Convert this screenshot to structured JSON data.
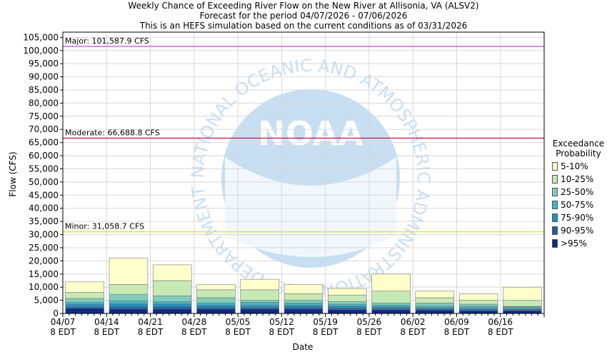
{
  "title": {
    "line1": "Weekly Chance of Exceeding River Flow on the New River at Allisonia, VA (ALSV2)",
    "line2": "Forecast for the period 04/07/2026 - 07/06/2026",
    "line3": "This is an HEFS simulation based on the current conditions as of 03/31/2026"
  },
  "legend": {
    "title_line1": "Exceedance",
    "title_line2": "Probability",
    "items": [
      {
        "label": "5-10%",
        "color": "#ffffcc"
      },
      {
        "label": "10-25%",
        "color": "#c7e9b4"
      },
      {
        "label": "25-50%",
        "color": "#7fcdbb"
      },
      {
        "label": "50-75%",
        "color": "#41b6c4"
      },
      {
        "label": "75-90%",
        "color": "#1d91c0"
      },
      {
        "label": "90-95%",
        "color": "#225ea8"
      },
      {
        "label": ">95%",
        "color": "#0c2c84"
      }
    ]
  },
  "watermark": {
    "logo_text": "NOAA",
    "ring_text": "NATIONAL OCEANIC AND ATMOSPHERIC ADMINISTRATION · U.S. DEPARTMENT OF COMMERCE"
  },
  "chart_data": {
    "type": "bar",
    "stacked": true,
    "xlabel": "Date",
    "ylabel": "Flow (CFS)",
    "ylim": [
      0,
      107000
    ],
    "yticks": [
      0,
      5000,
      10000,
      15000,
      20000,
      25000,
      30000,
      35000,
      40000,
      45000,
      50000,
      55000,
      60000,
      65000,
      70000,
      75000,
      80000,
      85000,
      90000,
      95000,
      100000,
      105000
    ],
    "ytick_labels": [
      "0",
      "5,000",
      "10,000",
      "15,000",
      "20,000",
      "25,000",
      "30,000",
      "35,000",
      "40,000",
      "45,000",
      "50,000",
      "55,000",
      "60,000",
      "65,000",
      "70,000",
      "75,000",
      "80,000",
      "85,000",
      "90,000",
      "95,000",
      "100,000",
      "105,000"
    ],
    "xtick_labels": [
      [
        "04/07",
        "8 EDT"
      ],
      [
        "04/14",
        "8 EDT"
      ],
      [
        "04/21",
        "8 EDT"
      ],
      [
        "04/28",
        "8 EDT"
      ],
      [
        "05/05",
        "8 EDT"
      ],
      [
        "05/12",
        "8 EDT"
      ],
      [
        "05/19",
        "8 EDT"
      ],
      [
        "05/26",
        "8 EDT"
      ],
      [
        "06/02",
        "8 EDT"
      ],
      [
        "06/09",
        "8 EDT"
      ],
      [
        "06/16",
        "8 EDT"
      ]
    ],
    "grid": true,
    "legend_position": "right",
    "thresholds": [
      {
        "label": "Major: 101,587.9 CFS",
        "value": 101587.9,
        "color": "#cc33cc"
      },
      {
        "label": "Moderate: 66,688.8 CFS",
        "value": 66688.8,
        "color": "#cc0033"
      },
      {
        "label": "Minor: 31,058.7 CFS",
        "value": 31058.7,
        "color": "#e6e600"
      }
    ],
    "series_order": [
      ">95%",
      "90-95%",
      "75-90%",
      "50-75%",
      "25-50%",
      "10-25%",
      "5-10%"
    ],
    "series_colors": [
      "#0c2c84",
      "#225ea8",
      "#1d91c0",
      "#41b6c4",
      "#7fcdbb",
      "#c7e9b4",
      "#ffffcc"
    ],
    "weeks": [
      {
        "bounds": [
          0,
          2000,
          2500,
          3500,
          4300,
          5700,
          8000,
          12000
        ]
      },
      {
        "bounds": [
          0,
          1700,
          2600,
          3700,
          4800,
          7300,
          11000,
          21000
        ]
      },
      {
        "bounds": [
          0,
          1700,
          2600,
          3600,
          4500,
          6700,
          12500,
          18500
        ]
      },
      {
        "bounds": [
          0,
          1700,
          2400,
          3200,
          4000,
          6000,
          9000,
          11000
        ]
      },
      {
        "bounds": [
          0,
          1700,
          2300,
          3000,
          4300,
          5000,
          9000,
          13000
        ]
      },
      {
        "bounds": [
          0,
          1700,
          2400,
          3100,
          4000,
          5000,
          7500,
          11000
        ]
      },
      {
        "bounds": [
          0,
          1500,
          2100,
          2800,
          3500,
          4500,
          7000,
          9500
        ]
      },
      {
        "bounds": [
          0,
          1400,
          1900,
          2500,
          3200,
          4000,
          8500,
          15000
        ]
      },
      {
        "bounds": [
          0,
          1300,
          1700,
          2200,
          2800,
          4000,
          6000,
          8500
        ]
      },
      {
        "bounds": [
          0,
          1100,
          1500,
          2000,
          2700,
          3500,
          5000,
          7500
        ]
      },
      {
        "bounds": [
          0,
          1100,
          1500,
          1900,
          2500,
          2700,
          5000,
          10000
        ]
      }
    ]
  }
}
